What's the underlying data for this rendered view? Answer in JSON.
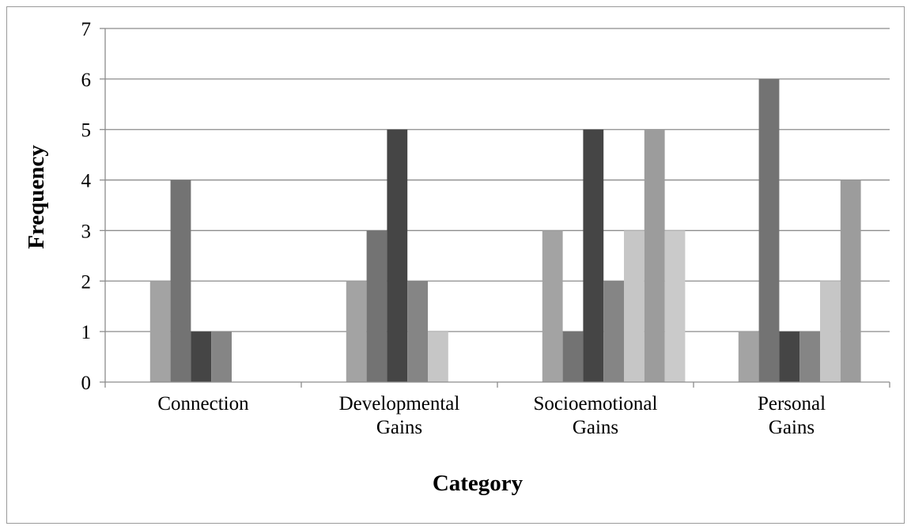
{
  "chart_data": {
    "type": "bar",
    "title": "",
    "xlabel": "Category",
    "ylabel": "Frequency",
    "ylim": [
      0,
      7
    ],
    "yticks": [
      0,
      1,
      2,
      3,
      4,
      5,
      6,
      7
    ],
    "grid": true,
    "legend": "none",
    "categories": [
      [
        "Connection"
      ],
      [
        "Developmental",
        "Gains"
      ],
      [
        "Socioemotional",
        "Gains"
      ],
      [
        "Personal",
        "Gains"
      ]
    ],
    "series": [
      {
        "color": "#6e6e6e",
        "values": [
          0,
          0,
          0,
          0
        ]
      },
      {
        "color": "#a3a3a3",
        "values": [
          2,
          2,
          3,
          1
        ]
      },
      {
        "color": "#737373",
        "values": [
          4,
          3,
          1,
          6
        ]
      },
      {
        "color": "#454545",
        "values": [
          1,
          5,
          5,
          1
        ]
      },
      {
        "color": "#858585",
        "values": [
          1,
          2,
          2,
          1
        ]
      },
      {
        "color": "#c6c6c6",
        "values": [
          0,
          1,
          3,
          2
        ]
      },
      {
        "color": "#9c9c9c",
        "values": [
          0,
          0,
          5,
          4
        ]
      },
      {
        "color": "#cacaca",
        "values": [
          0,
          0,
          3,
          0
        ]
      }
    ],
    "colors": {
      "grid": "#8c8c8c",
      "axis": "#8c8c8c",
      "border": "#9a9a9a"
    }
  }
}
